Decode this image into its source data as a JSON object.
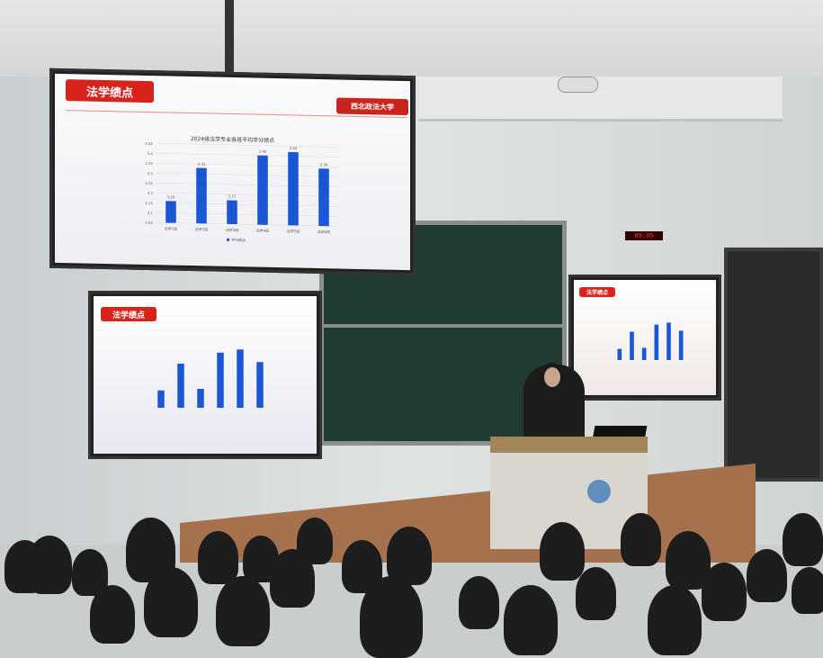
{
  "main_screen": {
    "slide_tag": "法学绩点",
    "logo_text": "西北政法大学",
    "chart_data": {
      "type": "bar",
      "title": "2024级法学专业各班平均学分绩点",
      "categories": [
        "法学1班",
        "法学2班",
        "法学3班",
        "法学4班",
        "法学5班",
        "法学6班"
      ],
      "series": [
        {
          "name": "平均绩点",
          "values": [
            3.16,
            3.33,
            3.17,
            3.4,
            3.42,
            3.34
          ],
          "color": "#1a56d6"
        }
      ],
      "yticks": [
        "3.45",
        "3.4",
        "3.35",
        "3.3",
        "3.25",
        "3.2",
        "3.15",
        "3.1",
        "3.05"
      ],
      "ylim": [
        3.05,
        3.45
      ],
      "grid": true,
      "legend": "bottom"
    }
  },
  "left_screen": {
    "slide_tag": "法学绩点"
  },
  "right_screen": {
    "slide_tag": "法学绩点"
  },
  "led_clock": "09:05"
}
